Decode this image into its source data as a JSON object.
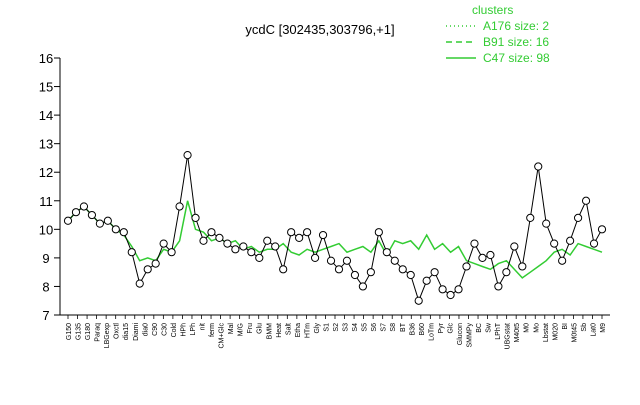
{
  "chart_data": {
    "type": "line",
    "title": "ycdC [302435,303796,+1]",
    "xlabel": "",
    "ylabel": "",
    "ylim": [
      7,
      16
    ],
    "yticks": [
      7,
      8,
      9,
      10,
      11,
      12,
      13,
      14,
      15,
      16
    ],
    "grid": false,
    "legend": {
      "title": "clusters",
      "placement": "top-right",
      "entries": [
        {
          "label": "A176 size: 2",
          "style": "dotted"
        },
        {
          "label": "B91 size: 16",
          "style": "dashed"
        },
        {
          "label": "C47 size: 98",
          "style": "solid"
        }
      ]
    },
    "colors": {
      "series": "#33cc33",
      "points": "#000000",
      "point_fill": "#ffffff"
    },
    "categories": [
      "G150",
      "G135",
      "G180",
      "Paraq",
      "LBGexp",
      "Oxctl",
      "dia15",
      "Diami",
      "dia0",
      "C90",
      "C30",
      "Cold",
      "HPh",
      "LPh",
      "nit",
      "ferm",
      "CM+Glc",
      "Mal",
      "M9+120",
      "M9+20",
      "M9+60",
      "Fru",
      "Glu",
      "BMM",
      "Heat",
      "HTm",
      "HGly",
      "S1",
      "S2",
      "S3",
      "S4",
      "S5",
      "S6",
      "S7",
      "S8",
      "B36",
      "B60",
      "LoTm",
      "Pyr",
      "Gluc",
      "Glucon",
      "SMM",
      "BT",
      "B8",
      "SMMPy",
      "T1",
      "T2",
      "T3",
      "T4",
      "T5",
      "BC",
      "Sw",
      "LPhT",
      "UBGstat",
      "M40t5",
      "LBGtrans",
      "M20",
      "M0",
      "Mo",
      "M05",
      "Lbstat",
      "M040",
      "BI",
      "M0t45",
      "Sb",
      "Lat0",
      "M9",
      "UBG"
    ],
    "shown_tick_labels": [
      "G150",
      "G135",
      "G180",
      "Paraq",
      "LBGexp",
      "Oxctl",
      "dia15",
      "Diami",
      "dia0",
      "C90",
      "C30",
      "Cold",
      "HPh",
      "LPh",
      "nit",
      "ferm",
      "CM+Glc",
      "Mal",
      "M/G",
      "Fru",
      "Glu",
      "BMM",
      "Heat",
      "Salt",
      "Etha",
      "HTm",
      "Gly",
      "S1",
      "S2",
      "S3",
      "S4",
      "S5",
      "S6",
      "S7",
      "S8",
      "BT",
      "B36",
      "B60",
      "LoTm",
      "Pyr",
      "Glc",
      "Glucon",
      "SMMPy",
      "BC",
      "Sw",
      "LPhT",
      "UBGstat",
      "M40t5",
      "M0",
      "Mo",
      "Lbstat",
      "M020",
      "BI",
      "M0t45",
      "Sb",
      "Lat0",
      "M9"
    ],
    "series": [
      {
        "name": "C47 size: 98",
        "style": "solid",
        "values": [
          10.3,
          10.6,
          10.8,
          10.5,
          10.2,
          10.3,
          10.0,
          9.8,
          9.4,
          8.9,
          9.0,
          8.9,
          9.3,
          9.2,
          9.6,
          11.0,
          10.0,
          9.9,
          9.6,
          9.7,
          9.5,
          9.6,
          9.3,
          9.4,
          9.2,
          9.3,
          9.3,
          9.5,
          9.2,
          9.1,
          9.3,
          9.2,
          9.3,
          9.4,
          9.5,
          9.2,
          9.3,
          9.4,
          9.2,
          9.6,
          9.1,
          9.6,
          9.5,
          9.6,
          9.3,
          9.8,
          9.3,
          9.5,
          9.2,
          9.4,
          8.9,
          8.8,
          8.7,
          8.6,
          8.8,
          8.9,
          8.6,
          8.3,
          8.5,
          8.7,
          8.9,
          9.2,
          9.3,
          9.1,
          9.5,
          9.4,
          9.3,
          9.2
        ]
      }
    ],
    "points": [
      {
        "cat": 0,
        "y": 10.3
      },
      {
        "cat": 1,
        "y": 10.6
      },
      {
        "cat": 2,
        "y": 10.8
      },
      {
        "cat": 3,
        "y": 10.5
      },
      {
        "cat": 4,
        "y": 10.2
      },
      {
        "cat": 5,
        "y": 10.3
      },
      {
        "cat": 6,
        "y": 10.0
      },
      {
        "cat": 7,
        "y": 9.9
      },
      {
        "cat": 8,
        "y": 9.2
      },
      {
        "cat": 9,
        "y": 8.1
      },
      {
        "cat": 10,
        "y": 8.6
      },
      {
        "cat": 11,
        "y": 8.8
      },
      {
        "cat": 12,
        "y": 9.5
      },
      {
        "cat": 13,
        "y": 9.2
      },
      {
        "cat": 14,
        "y": 10.8
      },
      {
        "cat": 15,
        "y": 12.6
      },
      {
        "cat": 16,
        "y": 10.4
      },
      {
        "cat": 17,
        "y": 9.6
      },
      {
        "cat": 18,
        "y": 9.9
      },
      {
        "cat": 19,
        "y": 9.7
      },
      {
        "cat": 20,
        "y": 9.5
      },
      {
        "cat": 21,
        "y": 9.3
      },
      {
        "cat": 22,
        "y": 9.4
      },
      {
        "cat": 23,
        "y": 9.2
      },
      {
        "cat": 24,
        "y": 9.0
      },
      {
        "cat": 25,
        "y": 9.6
      },
      {
        "cat": 26,
        "y": 9.4
      },
      {
        "cat": 27,
        "y": 8.6
      },
      {
        "cat": 28,
        "y": 9.9
      },
      {
        "cat": 29,
        "y": 9.7
      },
      {
        "cat": 30,
        "y": 9.9
      },
      {
        "cat": 31,
        "y": 9.0
      },
      {
        "cat": 32,
        "y": 9.8
      },
      {
        "cat": 33,
        "y": 8.9
      },
      {
        "cat": 34,
        "y": 8.6
      },
      {
        "cat": 35,
        "y": 8.9
      },
      {
        "cat": 36,
        "y": 8.4
      },
      {
        "cat": 37,
        "y": 8.0
      },
      {
        "cat": 38,
        "y": 8.5
      },
      {
        "cat": 39,
        "y": 9.9
      },
      {
        "cat": 40,
        "y": 9.2
      },
      {
        "cat": 41,
        "y": 8.9
      },
      {
        "cat": 42,
        "y": 8.6
      },
      {
        "cat": 43,
        "y": 8.4
      },
      {
        "cat": 44,
        "y": 7.5
      },
      {
        "cat": 45,
        "y": 8.2
      },
      {
        "cat": 46,
        "y": 8.5
      },
      {
        "cat": 47,
        "y": 7.9
      },
      {
        "cat": 48,
        "y": 7.7
      },
      {
        "cat": 49,
        "y": 7.9
      },
      {
        "cat": 50,
        "y": 8.7
      },
      {
        "cat": 51,
        "y": 9.5
      },
      {
        "cat": 52,
        "y": 9.0
      },
      {
        "cat": 53,
        "y": 9.1
      },
      {
        "cat": 54,
        "y": 8.0
      },
      {
        "cat": 55,
        "y": 8.5
      },
      {
        "cat": 56,
        "y": 9.4
      },
      {
        "cat": 57,
        "y": 8.7
      },
      {
        "cat": 58,
        "y": 10.4
      },
      {
        "cat": 59,
        "y": 12.2
      },
      {
        "cat": 60,
        "y": 10.2
      },
      {
        "cat": 61,
        "y": 9.5
      },
      {
        "cat": 62,
        "y": 8.9
      },
      {
        "cat": 63,
        "y": 9.6
      },
      {
        "cat": 64,
        "y": 10.4
      },
      {
        "cat": 65,
        "y": 11.0
      },
      {
        "cat": 66,
        "y": 9.5
      },
      {
        "cat": 67,
        "y": 10.0
      }
    ]
  }
}
